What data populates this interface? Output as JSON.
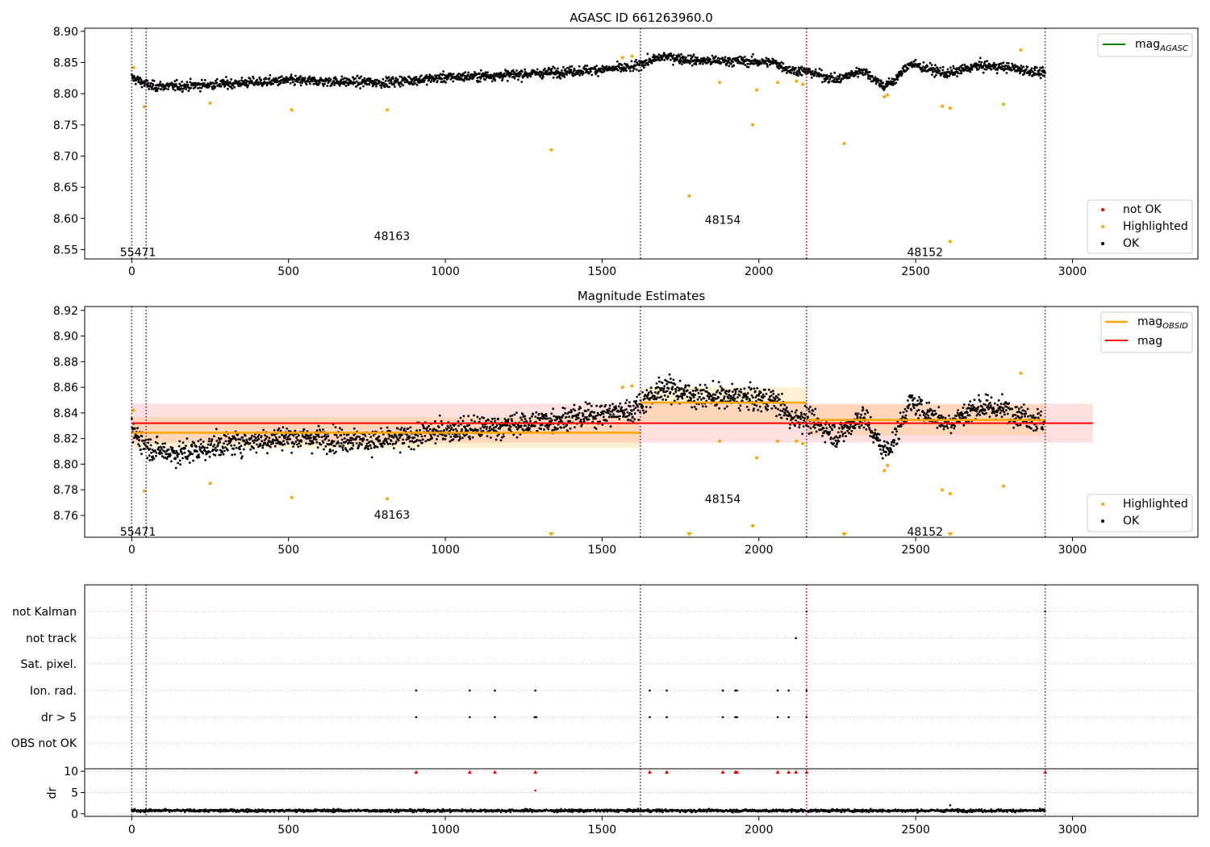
{
  "chart_data": [
    {
      "type": "scatter",
      "title": "AGASC ID 661263960.0",
      "xlim": [
        -150,
        3400
      ],
      "ylim": [
        8.535,
        8.905
      ],
      "xticks": [
        0,
        500,
        1000,
        1500,
        2000,
        2500,
        3000
      ],
      "yticks": [
        8.55,
        8.6,
        8.65,
        8.7,
        8.75,
        8.8,
        8.85,
        8.9
      ],
      "ytick_labels": [
        "8.55",
        "8.60",
        "8.65",
        "8.70",
        "8.75",
        "8.80",
        "8.85",
        "8.90"
      ],
      "obs_boundaries": [
        0,
        46,
        1622,
        2152,
        2913
      ],
      "obs_labels": [
        {
          "text": "55471",
          "x": 20,
          "y": 8.546
        },
        {
          "text": "48163",
          "x": 830,
          "y": 8.572
        },
        {
          "text": "48154",
          "x": 1885,
          "y": 8.598
        },
        {
          "text": "48152",
          "x": 2530,
          "y": 8.546
        }
      ],
      "ok_trend": [
        [
          0,
          8.826
        ],
        [
          60,
          8.812
        ],
        [
          150,
          8.812
        ],
        [
          300,
          8.816
        ],
        [
          500,
          8.821
        ],
        [
          800,
          8.818
        ],
        [
          1000,
          8.826
        ],
        [
          1200,
          8.83
        ],
        [
          1400,
          8.836
        ],
        [
          1600,
          8.842
        ],
        [
          1622,
          8.848
        ],
        [
          1700,
          8.86
        ],
        [
          1800,
          8.853
        ],
        [
          1950,
          8.852
        ],
        [
          2050,
          8.85
        ],
        [
          2100,
          8.838
        ],
        [
          2152,
          8.836
        ],
        [
          2250,
          8.822
        ],
        [
          2330,
          8.838
        ],
        [
          2400,
          8.812
        ],
        [
          2430,
          8.82
        ],
        [
          2480,
          8.848
        ],
        [
          2600,
          8.832
        ],
        [
          2700,
          8.845
        ],
        [
          2800,
          8.842
        ],
        [
          2913,
          8.832
        ]
      ],
      "highlighted": [
        [
          5,
          8.842
        ],
        [
          40,
          8.779
        ],
        [
          250,
          8.785
        ],
        [
          510,
          8.774
        ],
        [
          815,
          8.774
        ],
        [
          1338,
          8.71
        ],
        [
          1565,
          8.858
        ],
        [
          1595,
          8.86
        ],
        [
          1778,
          8.636
        ],
        [
          1875,
          8.818
        ],
        [
          1980,
          8.75
        ],
        [
          1993,
          8.806
        ],
        [
          2060,
          8.818
        ],
        [
          2120,
          8.82
        ],
        [
          2140,
          8.815
        ],
        [
          2272,
          8.72
        ],
        [
          2400,
          8.795
        ],
        [
          2410,
          8.798
        ],
        [
          2585,
          8.78
        ],
        [
          2610,
          8.777
        ],
        [
          2610,
          8.563
        ],
        [
          2780,
          8.783
        ],
        [
          2835,
          8.87
        ]
      ],
      "legends": [
        {
          "placement": "upper-right",
          "entries": [
            {
              "label": "mag",
              "subscript": "AGASC",
              "color": "#008000",
              "marker": "line"
            }
          ]
        },
        {
          "placement": "lower-right",
          "entries": [
            {
              "label": "not OK",
              "color": "#ff0000",
              "marker": "dot"
            },
            {
              "label": "Highlighted",
              "color": "#ffa500",
              "marker": "dot"
            },
            {
              "label": "OK",
              "color": "#000000",
              "marker": "dot"
            }
          ]
        }
      ]
    },
    {
      "type": "scatter",
      "title": "Magnitude Estimates",
      "xlim": [
        -150,
        3400
      ],
      "ylim": [
        8.743,
        8.923
      ],
      "xticks": [
        0,
        500,
        1000,
        1500,
        2000,
        2500,
        3000
      ],
      "yticks": [
        8.76,
        8.78,
        8.8,
        8.82,
        8.84,
        8.86,
        8.88,
        8.9,
        8.92
      ],
      "ytick_labels": [
        "8.76",
        "8.78",
        "8.80",
        "8.82",
        "8.84",
        "8.86",
        "8.88",
        "8.90",
        "8.92"
      ],
      "obs_boundaries": [
        0,
        46,
        1622,
        2152,
        2913
      ],
      "obs_labels": [
        {
          "text": "55471",
          "x": 20,
          "y": 8.7475
        },
        {
          "text": "48163",
          "x": 830,
          "y": 8.7605
        },
        {
          "text": "48154",
          "x": 1885,
          "y": 8.773
        },
        {
          "text": "48152",
          "x": 2530,
          "y": 8.7475
        }
      ],
      "mag": {
        "value": 8.832,
        "band": [
          8.8168,
          8.8472
        ],
        "x_range": [
          0,
          3065
        ],
        "color": "#ff0000"
      },
      "mag_obsid": [
        {
          "x": [
            0,
            1622
          ],
          "value": 8.8245,
          "band": [
            8.8125,
            8.8365
          ]
        },
        {
          "x": [
            1622,
            2152
          ],
          "value": 8.848,
          "band": [
            8.832,
            8.86
          ]
        },
        {
          "x": [
            2152,
            2913
          ],
          "value": 8.8345,
          "band": [
            8.8225,
            8.8465
          ]
        }
      ],
      "ok_trend": [
        [
          0,
          8.826
        ],
        [
          60,
          8.812
        ],
        [
          150,
          8.808
        ],
        [
          300,
          8.816
        ],
        [
          500,
          8.821
        ],
        [
          800,
          8.818
        ],
        [
          1000,
          8.826
        ],
        [
          1200,
          8.83
        ],
        [
          1400,
          8.836
        ],
        [
          1600,
          8.842
        ],
        [
          1622,
          8.848
        ],
        [
          1700,
          8.86
        ],
        [
          1800,
          8.853
        ],
        [
          1950,
          8.852
        ],
        [
          2050,
          8.85
        ],
        [
          2100,
          8.836
        ],
        [
          2152,
          8.836
        ],
        [
          2250,
          8.822
        ],
        [
          2330,
          8.838
        ],
        [
          2400,
          8.81
        ],
        [
          2430,
          8.818
        ],
        [
          2480,
          8.848
        ],
        [
          2600,
          8.832
        ],
        [
          2700,
          8.845
        ],
        [
          2800,
          8.842
        ],
        [
          2913,
          8.832
        ]
      ],
      "highlighted": [
        [
          5,
          8.842
        ],
        [
          40,
          8.779
        ],
        [
          250,
          8.785
        ],
        [
          510,
          8.774
        ],
        [
          815,
          8.773
        ],
        [
          1565,
          8.86
        ],
        [
          1595,
          8.861
        ],
        [
          1875,
          8.818
        ],
        [
          1980,
          8.752
        ],
        [
          1993,
          8.805
        ],
        [
          2060,
          8.818
        ],
        [
          2120,
          8.818
        ],
        [
          2140,
          8.816
        ],
        [
          2400,
          8.795
        ],
        [
          2410,
          8.799
        ],
        [
          2585,
          8.78
        ],
        [
          2610,
          8.777
        ],
        [
          2780,
          8.783
        ],
        [
          2835,
          8.871
        ]
      ],
      "clipped_low": [
        1338,
        1778,
        2272,
        2610
      ],
      "legends": [
        {
          "placement": "upper-right",
          "entries": [
            {
              "label": "mag",
              "subscript": "OBSID",
              "color": "#ffa500",
              "marker": "line"
            },
            {
              "label": "mag",
              "color": "#ff0000",
              "marker": "line"
            }
          ]
        },
        {
          "placement": "lower-right",
          "entries": [
            {
              "label": "Highlighted",
              "color": "#ffa500",
              "marker": "dot"
            },
            {
              "label": "OK",
              "color": "#000000",
              "marker": "dot"
            }
          ]
        }
      ]
    },
    {
      "type": "scatter",
      "xlim": [
        -150,
        3400
      ],
      "flag_rows": [
        "OBS not OK",
        "dr > 5",
        "Ion. rad.",
        "Sat. pixel.",
        "not track",
        "not Kalman"
      ],
      "flag_points": {
        "not Kalman": [
          2152,
          2913
        ],
        "not track": [
          2118
        ],
        "Ion. rad.": [
          907,
          1078,
          1158,
          1287,
          1652,
          1706,
          1885,
          1925,
          1930,
          2060,
          2095,
          2152
        ],
        "dr > 5": [
          907,
          1078,
          1158,
          1285,
          1290,
          1652,
          1706,
          1885,
          1925,
          1930,
          2060,
          2095,
          2152
        ]
      },
      "dr": {
        "ylabel": "dr",
        "yticks": [
          0,
          5,
          10
        ],
        "ylim": [
          -0.6,
          10.6
        ],
        "typical": 0.75,
        "clipped_high": [
          907,
          1078,
          1158,
          1287,
          1652,
          1706,
          1885,
          1925,
          1930,
          2060,
          2095,
          2118,
          2152,
          2913
        ],
        "outliers": [
          [
            1287,
            5.5
          ],
          [
            2610,
            2.0
          ]
        ]
      },
      "xticks": [
        0,
        500,
        1000,
        1500,
        2000,
        2500,
        3000
      ],
      "obs_boundaries": [
        0,
        46,
        1622,
        2152,
        2913
      ]
    }
  ]
}
